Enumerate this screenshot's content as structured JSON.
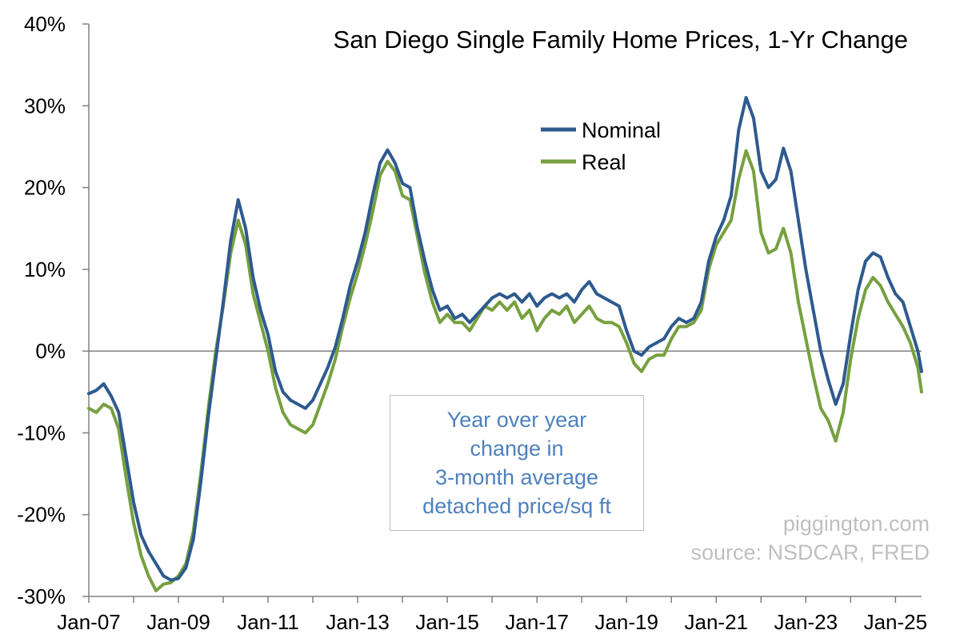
{
  "chart_data": {
    "type": "line",
    "title": "San Diego Single Family Home Prices, 1-Yr Change",
    "xlabel": "",
    "ylabel": "",
    "ylim": [
      -30,
      40
    ],
    "y_ticks": [
      "40%",
      "30%",
      "20%",
      "10%",
      "0%",
      "-10%",
      "-20%",
      "-30%"
    ],
    "x_range": [
      "2007-01",
      "2025-08"
    ],
    "x_ticks": [
      "Jan-07",
      "Jan-09",
      "Jan-11",
      "Jan-13",
      "Jan-15",
      "Jan-17",
      "Jan-19",
      "Jan-21",
      "Jan-23",
      "Jan-25"
    ],
    "grid": false,
    "legend_position": "top-center",
    "series": [
      {
        "name": "Nominal",
        "color": "#2e5a8e",
        "points": [
          [
            "2007-01",
            -5.2
          ],
          [
            "2007-03",
            -4.8
          ],
          [
            "2007-05",
            -4.0
          ],
          [
            "2007-07",
            -5.5
          ],
          [
            "2007-09",
            -7.5
          ],
          [
            "2007-11",
            -13.0
          ],
          [
            "2008-01",
            -18.5
          ],
          [
            "2008-03",
            -22.5
          ],
          [
            "2008-05",
            -24.5
          ],
          [
            "2008-07",
            -26.0
          ],
          [
            "2008-09",
            -27.5
          ],
          [
            "2008-11",
            -28.0
          ],
          [
            "2009-01",
            -27.8
          ],
          [
            "2009-03",
            -26.5
          ],
          [
            "2009-05",
            -23.0
          ],
          [
            "2009-07",
            -16.0
          ],
          [
            "2009-09",
            -8.0
          ],
          [
            "2009-11",
            -1.0
          ],
          [
            "2010-01",
            6.0
          ],
          [
            "2010-03",
            13.5
          ],
          [
            "2010-05",
            18.5
          ],
          [
            "2010-07",
            15.0
          ],
          [
            "2010-09",
            9.0
          ],
          [
            "2010-11",
            5.0
          ],
          [
            "2011-01",
            2.0
          ],
          [
            "2011-03",
            -2.5
          ],
          [
            "2011-05",
            -5.0
          ],
          [
            "2011-07",
            -6.0
          ],
          [
            "2011-09",
            -6.5
          ],
          [
            "2011-11",
            -7.0
          ],
          [
            "2012-01",
            -6.0
          ],
          [
            "2012-03",
            -4.0
          ],
          [
            "2012-05",
            -2.0
          ],
          [
            "2012-07",
            0.5
          ],
          [
            "2012-09",
            4.0
          ],
          [
            "2012-11",
            8.0
          ],
          [
            "2013-01",
            11.0
          ],
          [
            "2013-03",
            14.5
          ],
          [
            "2013-05",
            19.0
          ],
          [
            "2013-07",
            23.0
          ],
          [
            "2013-09",
            24.6
          ],
          [
            "2013-11",
            23.0
          ],
          [
            "2014-01",
            20.5
          ],
          [
            "2014-03",
            20.0
          ],
          [
            "2014-05",
            15.0
          ],
          [
            "2014-07",
            11.0
          ],
          [
            "2014-09",
            7.5
          ],
          [
            "2014-11",
            5.0
          ],
          [
            "2015-01",
            5.5
          ],
          [
            "2015-03",
            4.0
          ],
          [
            "2015-05",
            4.5
          ],
          [
            "2015-07",
            3.5
          ],
          [
            "2015-09",
            4.5
          ],
          [
            "2015-11",
            5.5
          ],
          [
            "2016-01",
            6.5
          ],
          [
            "2016-03",
            7.0
          ],
          [
            "2016-05",
            6.5
          ],
          [
            "2016-07",
            7.0
          ],
          [
            "2016-09",
            6.0
          ],
          [
            "2016-11",
            7.0
          ],
          [
            "2017-01",
            5.5
          ],
          [
            "2017-03",
            6.5
          ],
          [
            "2017-05",
            7.0
          ],
          [
            "2017-07",
            6.5
          ],
          [
            "2017-09",
            7.0
          ],
          [
            "2017-11",
            6.0
          ],
          [
            "2018-01",
            7.5
          ],
          [
            "2018-03",
            8.5
          ],
          [
            "2018-05",
            7.0
          ],
          [
            "2018-07",
            6.5
          ],
          [
            "2018-09",
            6.0
          ],
          [
            "2018-11",
            5.5
          ],
          [
            "2019-01",
            2.5
          ],
          [
            "2019-03",
            0.0
          ],
          [
            "2019-05",
            -0.5
          ],
          [
            "2019-07",
            0.5
          ],
          [
            "2019-09",
            1.0
          ],
          [
            "2019-11",
            1.5
          ],
          [
            "2020-01",
            3.0
          ],
          [
            "2020-03",
            4.0
          ],
          [
            "2020-05",
            3.5
          ],
          [
            "2020-07",
            4.0
          ],
          [
            "2020-09",
            6.0
          ],
          [
            "2020-11",
            11.0
          ],
          [
            "2021-01",
            14.0
          ],
          [
            "2021-03",
            16.0
          ],
          [
            "2021-05",
            19.0
          ],
          [
            "2021-07",
            27.0
          ],
          [
            "2021-09",
            31.0
          ],
          [
            "2021-11",
            28.5
          ],
          [
            "2022-01",
            22.0
          ],
          [
            "2022-03",
            20.0
          ],
          [
            "2022-05",
            21.0
          ],
          [
            "2022-07",
            24.8
          ],
          [
            "2022-09",
            22.0
          ],
          [
            "2022-11",
            16.0
          ],
          [
            "2023-01",
            10.0
          ],
          [
            "2023-03",
            5.0
          ],
          [
            "2023-05",
            0.0
          ],
          [
            "2023-07",
            -3.5
          ],
          [
            "2023-09",
            -6.5
          ],
          [
            "2023-11",
            -4.0
          ],
          [
            "2024-01",
            2.0
          ],
          [
            "2024-03",
            7.5
          ],
          [
            "2024-05",
            11.0
          ],
          [
            "2024-07",
            12.0
          ],
          [
            "2024-09",
            11.5
          ],
          [
            "2024-11",
            9.0
          ],
          [
            "2025-01",
            7.0
          ],
          [
            "2025-03",
            6.0
          ],
          [
            "2025-05",
            3.0
          ],
          [
            "2025-07",
            0.0
          ],
          [
            "2025-08",
            -2.5
          ]
        ]
      },
      {
        "name": "Real",
        "color": "#77a03f",
        "points": [
          [
            "2007-01",
            -7.0
          ],
          [
            "2007-03",
            -7.5
          ],
          [
            "2007-05",
            -6.5
          ],
          [
            "2007-07",
            -7.0
          ],
          [
            "2007-09",
            -9.5
          ],
          [
            "2007-11",
            -15.5
          ],
          [
            "2008-01",
            -21.0
          ],
          [
            "2008-03",
            -25.0
          ],
          [
            "2008-05",
            -27.5
          ],
          [
            "2008-07",
            -29.3
          ],
          [
            "2008-09",
            -28.5
          ],
          [
            "2008-11",
            -28.3
          ],
          [
            "2009-01",
            -27.5
          ],
          [
            "2009-03",
            -26.0
          ],
          [
            "2009-05",
            -22.0
          ],
          [
            "2009-07",
            -15.0
          ],
          [
            "2009-09",
            -7.0
          ],
          [
            "2009-11",
            0.0
          ],
          [
            "2010-01",
            5.5
          ],
          [
            "2010-03",
            12.0
          ],
          [
            "2010-05",
            16.0
          ],
          [
            "2010-07",
            13.0
          ],
          [
            "2010-09",
            7.0
          ],
          [
            "2010-11",
            3.5
          ],
          [
            "2011-01",
            0.0
          ],
          [
            "2011-03",
            -4.5
          ],
          [
            "2011-05",
            -7.5
          ],
          [
            "2011-07",
            -9.0
          ],
          [
            "2011-09",
            -9.5
          ],
          [
            "2011-11",
            -10.0
          ],
          [
            "2012-01",
            -9.0
          ],
          [
            "2012-03",
            -6.5
          ],
          [
            "2012-05",
            -4.0
          ],
          [
            "2012-07",
            -1.0
          ],
          [
            "2012-09",
            3.0
          ],
          [
            "2012-11",
            6.5
          ],
          [
            "2013-01",
            9.5
          ],
          [
            "2013-03",
            13.0
          ],
          [
            "2013-05",
            17.0
          ],
          [
            "2013-07",
            21.5
          ],
          [
            "2013-09",
            23.2
          ],
          [
            "2013-11",
            22.0
          ],
          [
            "2014-01",
            19.0
          ],
          [
            "2014-03",
            18.5
          ],
          [
            "2014-05",
            14.0
          ],
          [
            "2014-07",
            9.5
          ],
          [
            "2014-09",
            6.0
          ],
          [
            "2014-11",
            3.5
          ],
          [
            "2015-01",
            4.5
          ],
          [
            "2015-03",
            3.5
          ],
          [
            "2015-05",
            3.5
          ],
          [
            "2015-07",
            2.5
          ],
          [
            "2015-09",
            4.0
          ],
          [
            "2015-11",
            5.5
          ],
          [
            "2016-01",
            5.0
          ],
          [
            "2016-03",
            6.0
          ],
          [
            "2016-05",
            5.0
          ],
          [
            "2016-07",
            6.0
          ],
          [
            "2016-09",
            4.0
          ],
          [
            "2016-11",
            5.0
          ],
          [
            "2017-01",
            2.5
          ],
          [
            "2017-03",
            4.0
          ],
          [
            "2017-05",
            5.0
          ],
          [
            "2017-07",
            4.5
          ],
          [
            "2017-09",
            5.5
          ],
          [
            "2017-11",
            3.5
          ],
          [
            "2018-01",
            4.5
          ],
          [
            "2018-03",
            5.5
          ],
          [
            "2018-05",
            4.0
          ],
          [
            "2018-07",
            3.5
          ],
          [
            "2018-09",
            3.5
          ],
          [
            "2018-11",
            3.0
          ],
          [
            "2019-01",
            1.0
          ],
          [
            "2019-03",
            -1.5
          ],
          [
            "2019-05",
            -2.5
          ],
          [
            "2019-07",
            -1.0
          ],
          [
            "2019-09",
            -0.5
          ],
          [
            "2019-11",
            -0.5
          ],
          [
            "2020-01",
            1.5
          ],
          [
            "2020-03",
            3.0
          ],
          [
            "2020-05",
            3.0
          ],
          [
            "2020-07",
            3.5
          ],
          [
            "2020-09",
            5.0
          ],
          [
            "2020-11",
            10.0
          ],
          [
            "2021-01",
            13.0
          ],
          [
            "2021-03",
            14.5
          ],
          [
            "2021-05",
            16.0
          ],
          [
            "2021-07",
            21.0
          ],
          [
            "2021-09",
            24.5
          ],
          [
            "2021-11",
            22.0
          ],
          [
            "2022-01",
            14.5
          ],
          [
            "2022-03",
            12.0
          ],
          [
            "2022-05",
            12.5
          ],
          [
            "2022-07",
            15.0
          ],
          [
            "2022-09",
            12.0
          ],
          [
            "2022-11",
            6.0
          ],
          [
            "2023-01",
            1.5
          ],
          [
            "2023-03",
            -3.0
          ],
          [
            "2023-05",
            -7.0
          ],
          [
            "2023-07",
            -8.5
          ],
          [
            "2023-09",
            -11.0
          ],
          [
            "2023-11",
            -7.5
          ],
          [
            "2024-01",
            -1.0
          ],
          [
            "2024-03",
            4.0
          ],
          [
            "2024-05",
            7.5
          ],
          [
            "2024-07",
            9.0
          ],
          [
            "2024-09",
            8.0
          ],
          [
            "2024-11",
            6.0
          ],
          [
            "2025-01",
            4.5
          ],
          [
            "2025-03",
            3.0
          ],
          [
            "2025-05",
            1.0
          ],
          [
            "2025-07",
            -2.0
          ],
          [
            "2025-08",
            -5.0
          ]
        ]
      }
    ]
  },
  "annotation": {
    "lines": [
      "Year over year",
      "change in",
      "3-month average",
      "detached price/sq ft"
    ],
    "color": "#4f81bd"
  },
  "credits": {
    "site": "piggington.com",
    "source": "source: NSDCAR, FRED",
    "color": "#bfbfbf"
  }
}
